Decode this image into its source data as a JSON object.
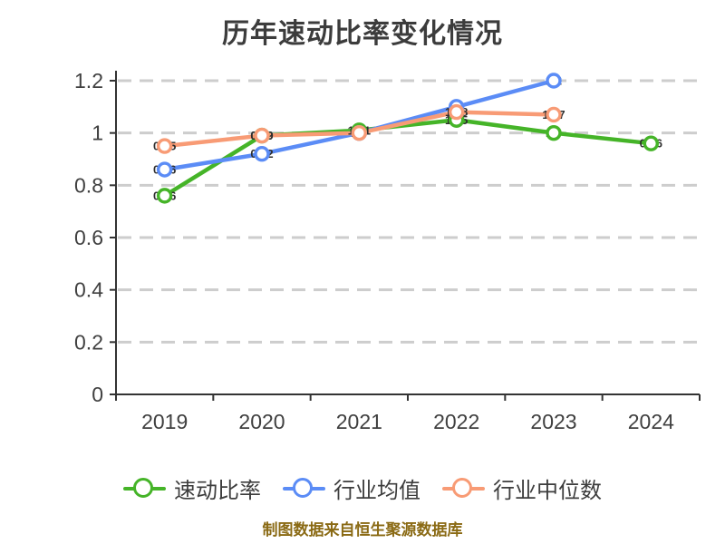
{
  "page": {
    "background_color": "#ffffff"
  },
  "chart_data": {
    "type": "line",
    "title": "历年速动比率变化情况",
    "categories": [
      "2019",
      "2020",
      "2021",
      "2022",
      "2023",
      "2024"
    ],
    "series": [
      {
        "key": "quick-ratio",
        "name": "速动比率",
        "color": "#45b428",
        "values": [
          0.76,
          0.99,
          1.01,
          1.05,
          1.0,
          0.96
        ],
        "labels": [
          "0.76",
          "0.99",
          "1.01",
          "1.05",
          "1.0",
          "0.96"
        ]
      },
      {
        "key": "industry-mean",
        "name": "行业均值",
        "color": "#5b8cf6",
        "values": [
          0.86,
          0.92,
          1.0,
          1.1,
          1.2,
          null
        ],
        "labels": [
          "0.86",
          "0.92",
          "1.0",
          "1.1",
          "1.2",
          ""
        ]
      },
      {
        "key": "industry-median",
        "name": "行业中位数",
        "color": "#f89b75",
        "values": [
          0.95,
          0.99,
          1.0,
          1.08,
          1.07,
          null
        ],
        "labels": [
          "0.95",
          "0.99",
          "1.0",
          "1.08",
          "1.07",
          ""
        ]
      }
    ],
    "xlabel": "",
    "ylabel": "",
    "ylim": [
      0,
      1.2
    ],
    "yticks": [
      0,
      0.2,
      0.4,
      0.6,
      0.8,
      1,
      1.2
    ],
    "ytick_labels": [
      "0",
      "0.2",
      "0.4",
      "0.6",
      "0.8",
      "1",
      "1.2"
    ],
    "grid": "dashed-horizontal",
    "legend_position": "bottom",
    "marker_style": "empty-circle",
    "title_color": "#3c3c3c",
    "axis_color": "#333333",
    "grid_color": "#cdcdcd",
    "tick_label_color": "#404040",
    "data_label_color": "#2e2e2e"
  },
  "footer": {
    "source_note": "制图数据来自恒生聚源数据库",
    "color": "#8a6a14"
  }
}
